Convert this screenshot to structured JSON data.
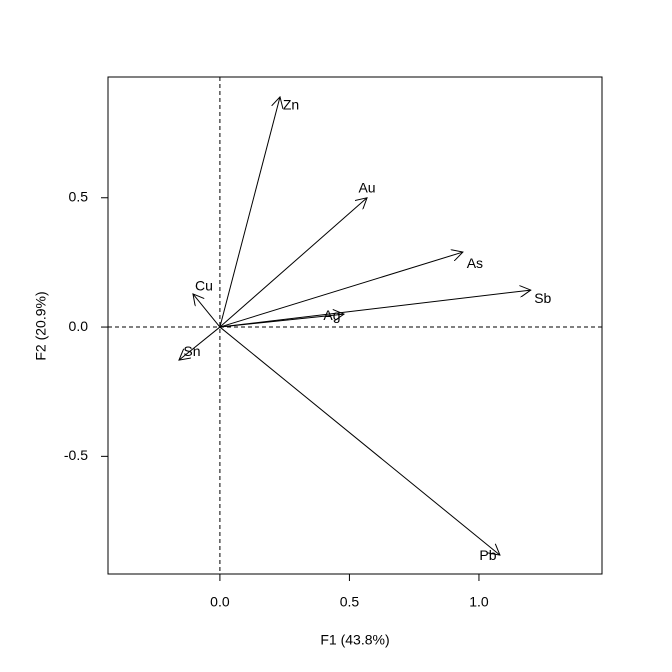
{
  "chart_data": {
    "type": "vector",
    "xlabel": "F1 (43.8%)",
    "ylabel": "F2 (20.9%)",
    "vectors": [
      "Zn",
      "Au",
      "As",
      "Sb",
      "Ag",
      "Cu",
      "Sn",
      "Pb"
    ],
    "x": [
      0.232,
      0.568,
      0.938,
      1.2,
      0.479,
      -0.104,
      -0.158,
      1.081
    ],
    "y": [
      0.89,
      0.5,
      0.29,
      0.143,
      0.05,
      0.128,
      -0.128,
      -0.882
    ],
    "color": "#000000",
    "xlim": [
      -0.432,
      1.475
    ],
    "ylim": [
      -0.955,
      0.967
    ],
    "xticks": [
      {
        "value": 0,
        "label": "0.0"
      },
      0.5,
      {
        "value": 1,
        "label": "1.0"
      }
    ],
    "yticks": [
      -0.5,
      {
        "value": 0,
        "label": "0.0"
      },
      0.5
    ],
    "zero_lines": true
  }
}
